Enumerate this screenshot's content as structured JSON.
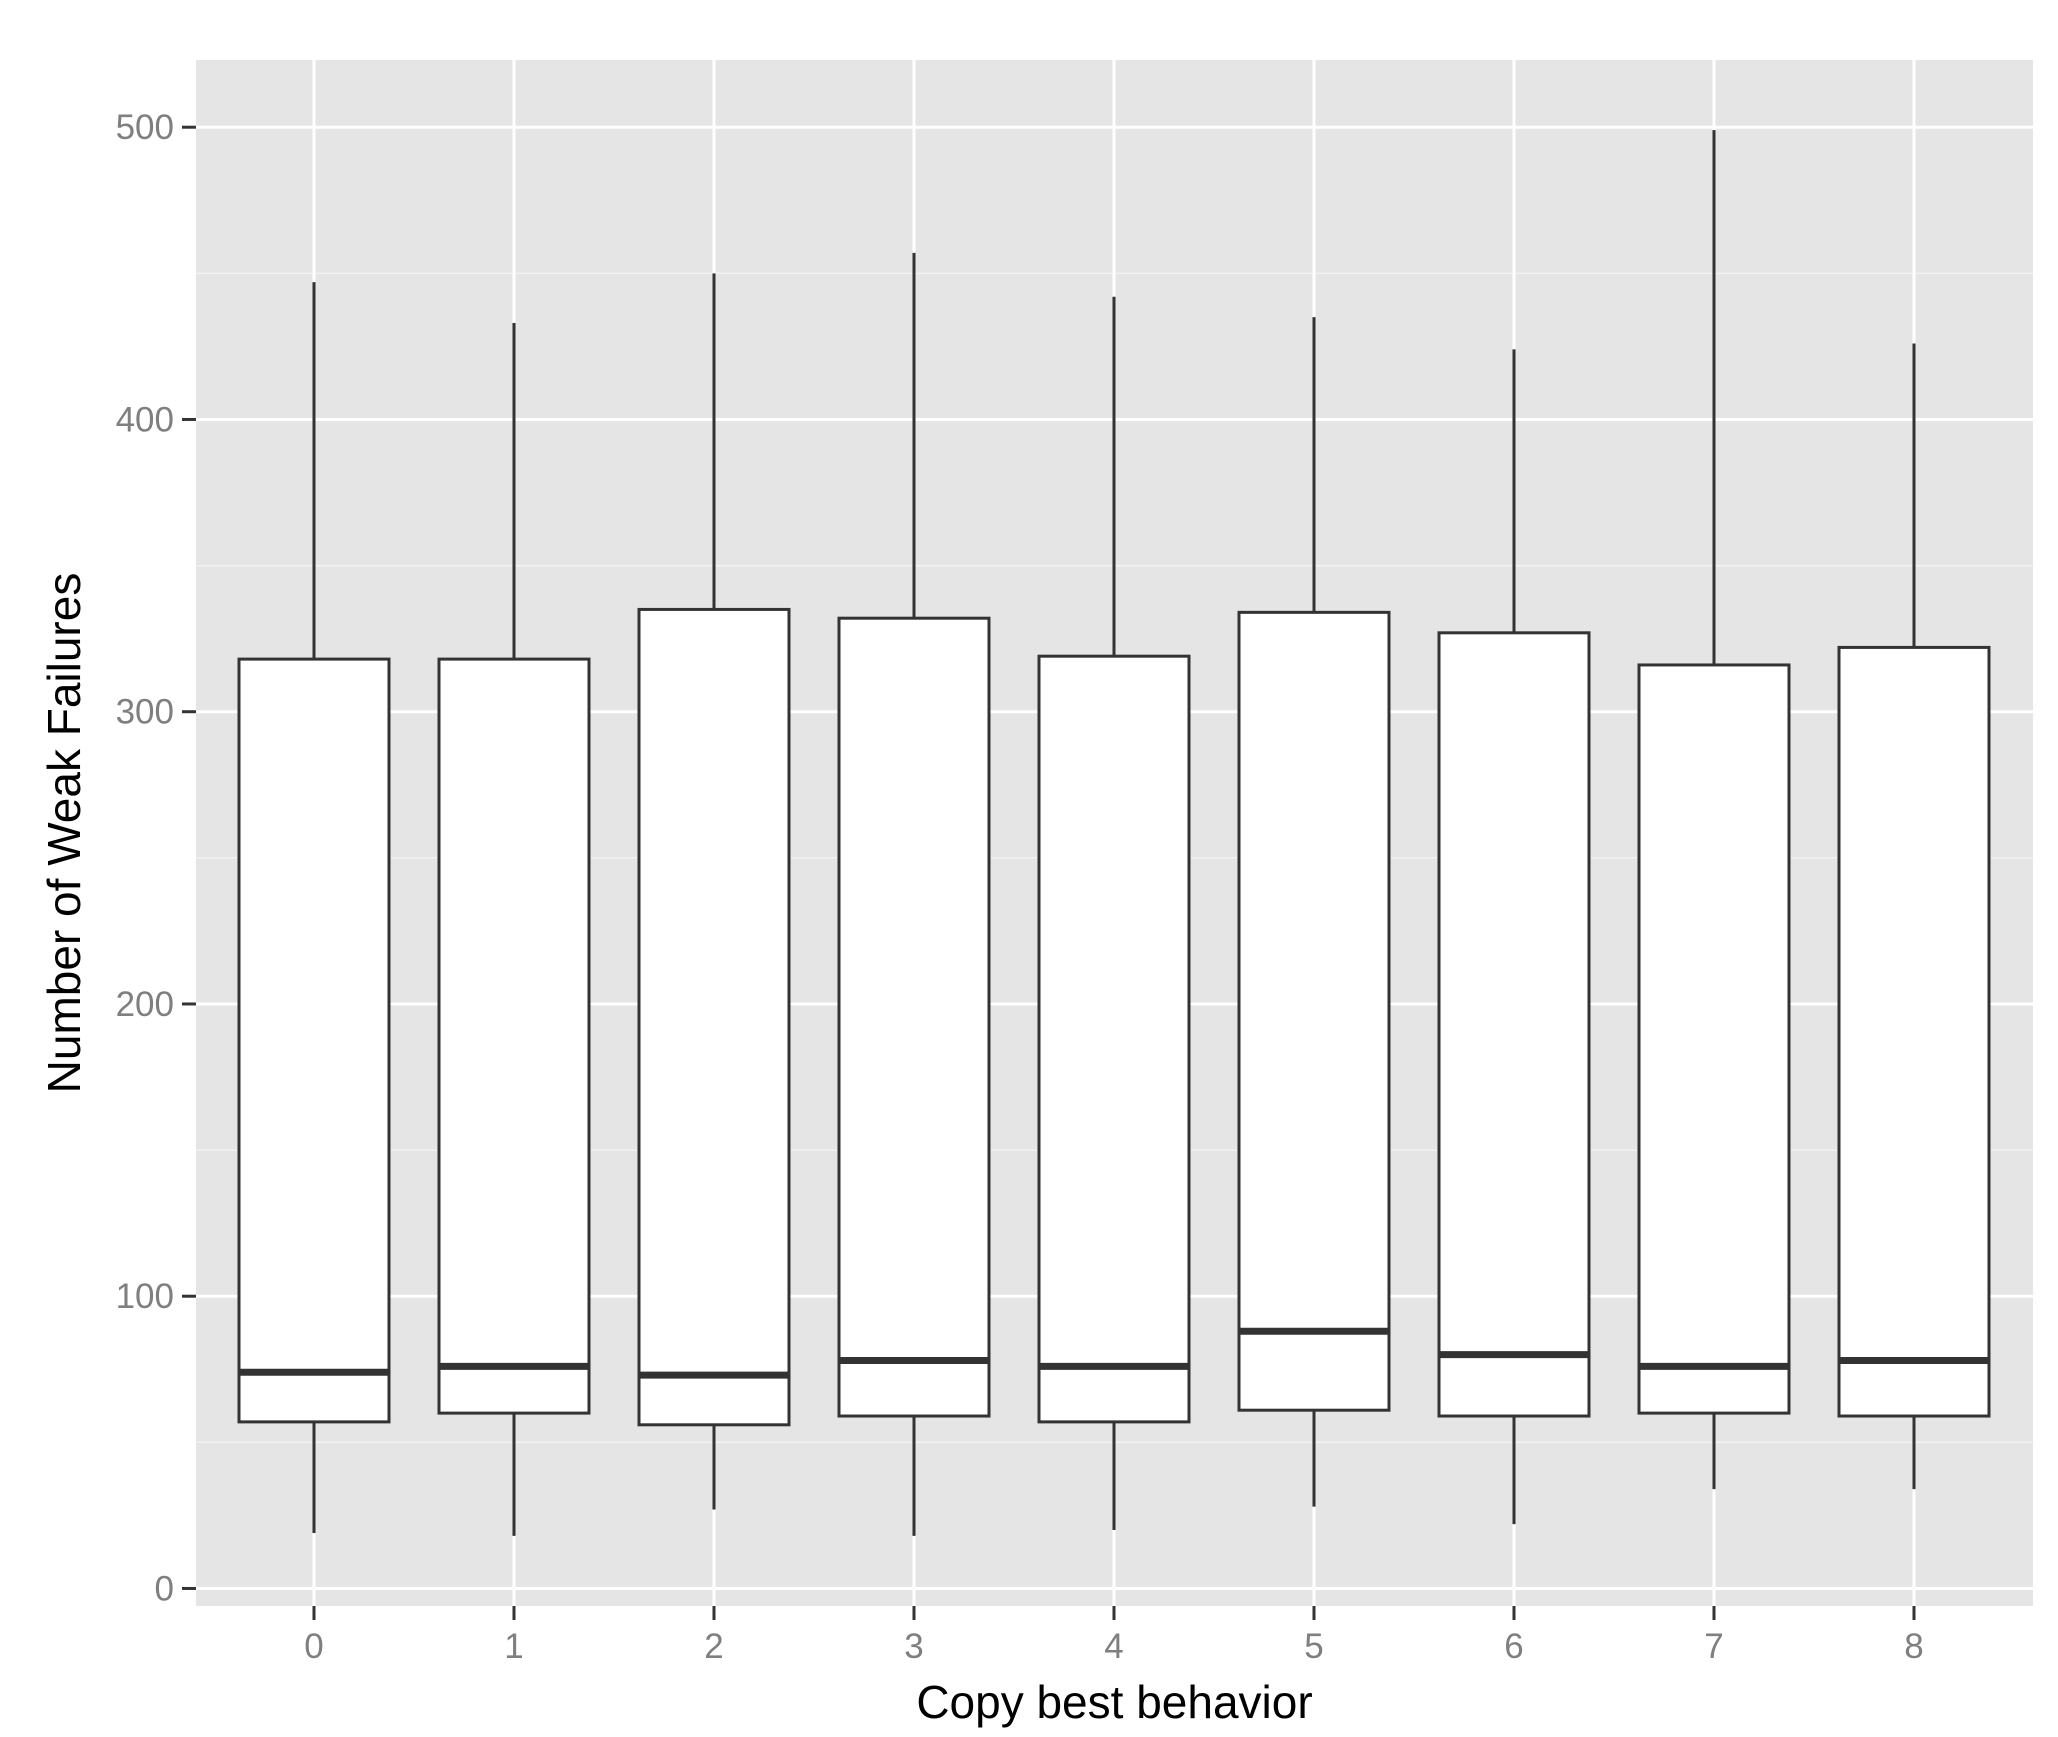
{
  "chart_data": {
    "type": "boxplot",
    "title": "",
    "xlabel": "Copy best behavior",
    "ylabel": "Number of Weak Failures",
    "categories": [
      "0",
      "1",
      "2",
      "3",
      "4",
      "5",
      "6",
      "7",
      "8"
    ],
    "ylim": [
      -6,
      523
    ],
    "yticks": [
      0,
      100,
      200,
      300,
      400,
      500
    ],
    "ytick_labels": [
      "0",
      "100",
      "200",
      "300",
      "400",
      "500"
    ],
    "grid": true,
    "legend": "none",
    "boxes": [
      {
        "category": "0",
        "whisker_low": 19,
        "q1": 57,
        "median": 74,
        "q3": 318,
        "whisker_high": 447
      },
      {
        "category": "1",
        "whisker_low": 18,
        "q1": 60,
        "median": 76,
        "q3": 318,
        "whisker_high": 433
      },
      {
        "category": "2",
        "whisker_low": 27,
        "q1": 56,
        "median": 73,
        "q3": 335,
        "whisker_high": 450
      },
      {
        "category": "3",
        "whisker_low": 18,
        "q1": 59,
        "median": 78,
        "q3": 332,
        "whisker_high": 457
      },
      {
        "category": "4",
        "whisker_low": 20,
        "q1": 57,
        "median": 76,
        "q3": 319,
        "whisker_high": 442
      },
      {
        "category": "5",
        "whisker_low": 28,
        "q1": 61,
        "median": 88,
        "q3": 334,
        "whisker_high": 435
      },
      {
        "category": "6",
        "whisker_low": 22,
        "q1": 59,
        "median": 80,
        "q3": 327,
        "whisker_high": 424
      },
      {
        "category": "7",
        "whisker_low": 34,
        "q1": 60,
        "median": 76,
        "q3": 316,
        "whisker_high": 499
      },
      {
        "category": "8",
        "whisker_low": 34,
        "q1": 59,
        "median": 78,
        "q3": 322,
        "whisker_high": 426
      }
    ],
    "colors": {
      "panel_background": "#e5e5e5",
      "grid_major": "#ffffff",
      "grid_minor": "#f2f2f2",
      "box_fill": "#ffffff",
      "box_stroke": "#333333",
      "tick_text": "#7f7f7f",
      "axis_title_text": "#000000"
    }
  }
}
